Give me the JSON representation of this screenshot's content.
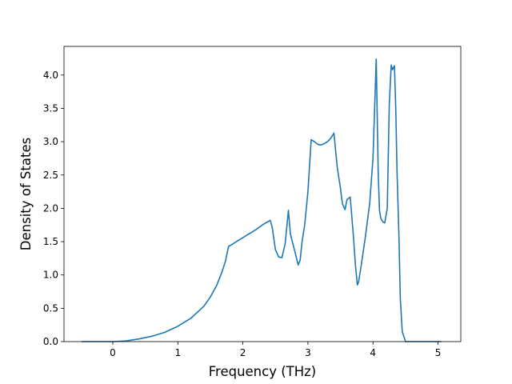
{
  "chart_data": {
    "type": "line",
    "title": "",
    "xlabel": "Frequency (THz)",
    "ylabel": "Density of States",
    "xlim": [
      -0.75,
      5.35
    ],
    "ylim": [
      0.0,
      4.43
    ],
    "xticks": [
      0,
      1,
      2,
      3,
      4,
      5
    ],
    "xtick_labels": [
      "0",
      "1",
      "2",
      "3",
      "4",
      "5"
    ],
    "yticks": [
      0.0,
      0.5,
      1.0,
      1.5,
      2.0,
      2.5,
      3.0,
      3.5,
      4.0
    ],
    "ytick_labels": [
      "0.0",
      "0.5",
      "1.0",
      "1.5",
      "2.0",
      "2.5",
      "3.0",
      "3.5",
      "4.0"
    ],
    "grid": false,
    "legend": "none",
    "colors": {
      "series": "#1f77b4",
      "axes": "#000000",
      "background": "#ffffff"
    },
    "series": [
      {
        "x": [
          -0.48,
          -0.3,
          -0.1,
          0.0,
          0.2,
          0.4,
          0.6,
          0.8,
          1.0,
          1.2,
          1.4,
          1.5,
          1.6,
          1.68,
          1.73,
          1.78,
          1.82,
          1.9,
          2.0,
          2.1,
          2.2,
          2.3,
          2.35,
          2.42,
          2.45,
          2.5,
          2.55,
          2.6,
          2.65,
          2.7,
          2.73,
          2.76,
          2.8,
          2.85,
          2.88,
          2.91,
          2.95,
          3.0,
          3.05,
          3.1,
          3.15,
          3.2,
          3.25,
          3.3,
          3.35,
          3.4,
          3.45,
          3.5,
          3.53,
          3.57,
          3.6,
          3.65,
          3.7,
          3.73,
          3.76,
          3.78,
          3.82,
          3.88,
          3.95,
          4.0,
          4.05,
          4.08,
          4.1,
          4.12,
          4.15,
          4.18,
          4.22,
          4.25,
          4.28,
          4.3,
          4.33,
          4.35,
          4.37,
          4.4,
          4.42,
          4.45,
          4.5,
          4.55,
          4.6,
          4.62,
          4.65,
          4.8,
          5.05
        ],
        "y": [
          0.0,
          0.0,
          0.0,
          0.0,
          0.01,
          0.04,
          0.08,
          0.14,
          0.23,
          0.35,
          0.53,
          0.67,
          0.85,
          1.05,
          1.2,
          1.43,
          1.45,
          1.5,
          1.56,
          1.62,
          1.68,
          1.75,
          1.78,
          1.82,
          1.72,
          1.38,
          1.27,
          1.26,
          1.47,
          1.97,
          1.62,
          1.5,
          1.35,
          1.15,
          1.22,
          1.5,
          1.75,
          2.25,
          3.03,
          3.0,
          2.96,
          2.95,
          2.97,
          3.0,
          3.05,
          3.13,
          2.62,
          2.3,
          2.07,
          1.98,
          2.13,
          2.17,
          1.57,
          1.15,
          0.85,
          0.9,
          1.15,
          1.55,
          2.08,
          2.75,
          4.24,
          2.55,
          1.97,
          1.85,
          1.8,
          1.78,
          2.0,
          3.55,
          4.15,
          4.08,
          4.14,
          3.5,
          2.55,
          1.55,
          0.65,
          0.15,
          0.0,
          0.0,
          0.0,
          0.0,
          0.0,
          0.0,
          0.0
        ]
      }
    ]
  }
}
